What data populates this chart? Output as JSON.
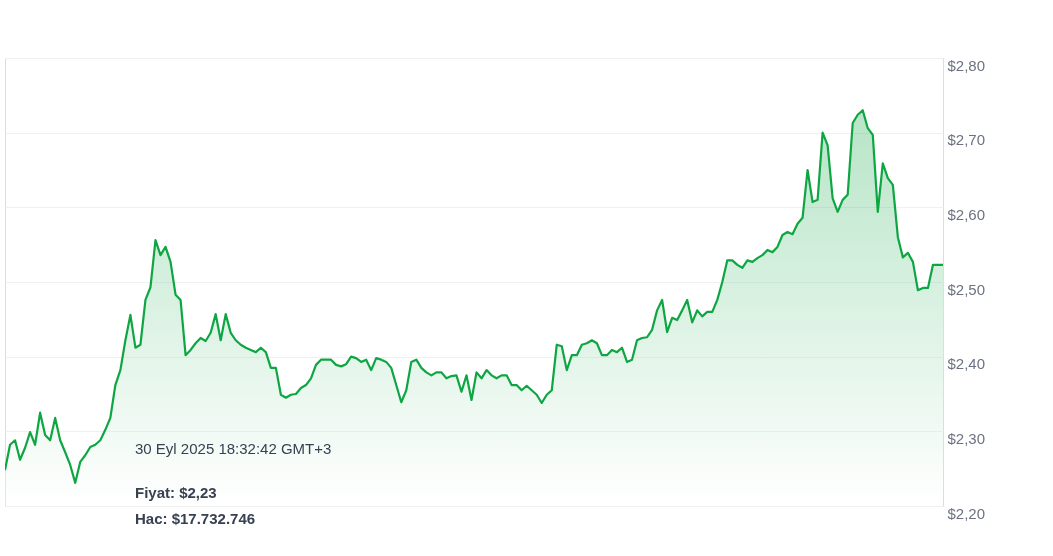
{
  "chart_data": {
    "type": "area",
    "categories": [
      null,
      null,
      null,
      null,
      null,
      null,
      null,
      null,
      null,
      null,
      null,
      null,
      null,
      null,
      null,
      null,
      null,
      null,
      null,
      null,
      null,
      null,
      null,
      null,
      null,
      null,
      null,
      null,
      null,
      null,
      null,
      null,
      null,
      null,
      null,
      null,
      null,
      null,
      null,
      null,
      null,
      null,
      null,
      null,
      null,
      null,
      null,
      null,
      null,
      null,
      null,
      null,
      null,
      null,
      null,
      null,
      null,
      null,
      null,
      null,
      null,
      null,
      null,
      null,
      null,
      null,
      null,
      null,
      null,
      null,
      null,
      null,
      null,
      null,
      null,
      null,
      null,
      null,
      null,
      null,
      null,
      null,
      null,
      null,
      null,
      null,
      null,
      null,
      null,
      null,
      null,
      null,
      null,
      null,
      null,
      null,
      null,
      null,
      null,
      null,
      null,
      null,
      null,
      null,
      null,
      null,
      null,
      null,
      null,
      null,
      null,
      null,
      null,
      null,
      null,
      null,
      null,
      null,
      null,
      null,
      null,
      null,
      null,
      null,
      null,
      null,
      null,
      null,
      null,
      null,
      null,
      null,
      null,
      null,
      null,
      null,
      null,
      null,
      null,
      null,
      null,
      null,
      null,
      null,
      null,
      null,
      null,
      null,
      null,
      null,
      null,
      null,
      null,
      null,
      null,
      null,
      null,
      null,
      null,
      null,
      null,
      null,
      null,
      null,
      null,
      null,
      null,
      null,
      null,
      null,
      null,
      null,
      null,
      null,
      null,
      null,
      null,
      null,
      null,
      null,
      null,
      null,
      null,
      null,
      null,
      null,
      null,
      null
    ],
    "series": [
      {
        "color": "#0ea643",
        "values": [
          2.248,
          2.282,
          2.288,
          2.262,
          2.278,
          2.299,
          2.282,
          2.325,
          2.295,
          2.288,
          2.318,
          2.288,
          2.272,
          2.255,
          2.231,
          2.259,
          2.268,
          2.279,
          2.282,
          2.288,
          2.302,
          2.318,
          2.362,
          2.382,
          2.422,
          2.456,
          2.412,
          2.416,
          2.476,
          2.493,
          2.556,
          2.536,
          2.547,
          2.527,
          2.483,
          2.476,
          2.402,
          2.409,
          2.418,
          2.425,
          2.421,
          2.432,
          2.457,
          2.422,
          2.457,
          2.432,
          2.422,
          2.416,
          2.412,
          2.409,
          2.406,
          2.412,
          2.406,
          2.385,
          2.385,
          2.349,
          2.345,
          2.349,
          2.35,
          2.358,
          2.362,
          2.371,
          2.389,
          2.396,
          2.396,
          2.396,
          2.389,
          2.387,
          2.39,
          2.4,
          2.398,
          2.393,
          2.396,
          2.382,
          2.398,
          2.396,
          2.393,
          2.385,
          2.362,
          2.339,
          2.355,
          2.393,
          2.396,
          2.385,
          2.379,
          2.375,
          2.379,
          2.379,
          2.371,
          2.374,
          2.375,
          2.353,
          2.375,
          2.342,
          2.379,
          2.371,
          2.382,
          2.375,
          2.371,
          2.375,
          2.375,
          2.362,
          2.362,
          2.355,
          2.361,
          2.355,
          2.349,
          2.338,
          2.349,
          2.355,
          2.416,
          2.414,
          2.382,
          2.402,
          2.402,
          2.416,
          2.418,
          2.422,
          2.418,
          2.402,
          2.402,
          2.409,
          2.406,
          2.412,
          2.393,
          2.396,
          2.422,
          2.425,
          2.426,
          2.436,
          2.462,
          2.476,
          2.433,
          2.452,
          2.449,
          2.462,
          2.476,
          2.446,
          2.462,
          2.454,
          2.46,
          2.46,
          2.476,
          2.5,
          2.529,
          2.529,
          2.523,
          2.519,
          2.529,
          2.527,
          2.532,
          2.536,
          2.543,
          2.54,
          2.547,
          2.563,
          2.567,
          2.564,
          2.578,
          2.586,
          2.65,
          2.607,
          2.61,
          2.7,
          2.683,
          2.612,
          2.594,
          2.61,
          2.617,
          2.713,
          2.724,
          2.73,
          2.706,
          2.697,
          2.594,
          2.659,
          2.639,
          2.63,
          2.56,
          2.533,
          2.539,
          2.527,
          2.489,
          2.492,
          2.492,
          2.523,
          2.523,
          2.523
        ]
      }
    ],
    "ylim": [
      2.2,
      2.8
    ],
    "yticks": [
      {
        "value": 2.2,
        "label": "$2,20"
      },
      {
        "value": 2.3,
        "label": "$2,30"
      },
      {
        "value": 2.4,
        "label": "$2,40"
      },
      {
        "value": 2.5,
        "label": "$2,50"
      },
      {
        "value": 2.6,
        "label": "$2,60"
      },
      {
        "value": 2.7,
        "label": "$2,70"
      },
      {
        "value": 2.8,
        "label": "$2,80"
      }
    ],
    "grid": "y",
    "marker": "none",
    "line_style": "solid",
    "tick_labels": "y",
    "annotations": [
      "30 Eyl 2025 18:32:42 GMT+3",
      "Fiyat: $2,23",
      "Hac: $17.732.746"
    ]
  }
}
